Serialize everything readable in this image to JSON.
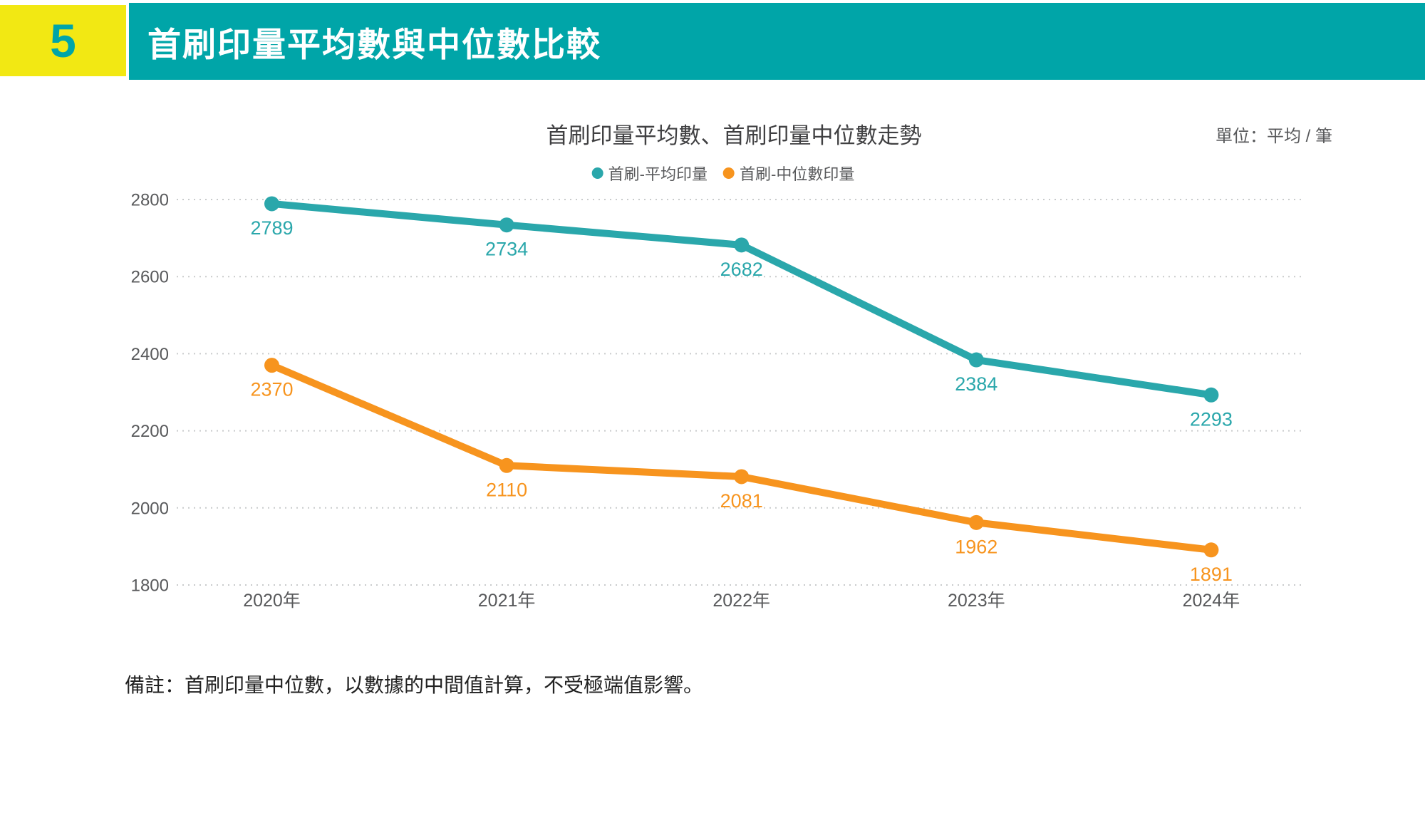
{
  "header": {
    "section_number": "5",
    "title": "首刷印量平均數與中位數比較"
  },
  "colors": {
    "header_teal": "#00A5A8",
    "badge_yellow": "#F2E813",
    "series_teal": "#2AA7AB",
    "series_orange": "#F7941E",
    "axis_text": "#58595B",
    "gridline": "#C9CBCC"
  },
  "chart_data": {
    "type": "line",
    "title": "首刷印量平均數、首刷印量中位數走勢",
    "unit_label": "單位：平均 / 筆",
    "categories": [
      "2020年",
      "2021年",
      "2022年",
      "2023年",
      "2024年"
    ],
    "y_ticks": [
      2800,
      2600,
      2400,
      2200,
      2000,
      1800
    ],
    "ylim": [
      1800,
      2800
    ],
    "grid": "horizontal dotted lines",
    "legend_position": "top-center",
    "data_labels": "below points",
    "series": [
      {
        "name": "首刷-平均印量",
        "color": "#2AA7AB",
        "values": [
          2789,
          2734,
          2682,
          2384,
          2293
        ]
      },
      {
        "name": "首刷-中位數印量",
        "color": "#F7941E",
        "values": [
          2370,
          2110,
          2081,
          1962,
          1891
        ]
      }
    ]
  },
  "note": "備註：首刷印量中位數，以數據的中間值計算，不受極端值影響。"
}
